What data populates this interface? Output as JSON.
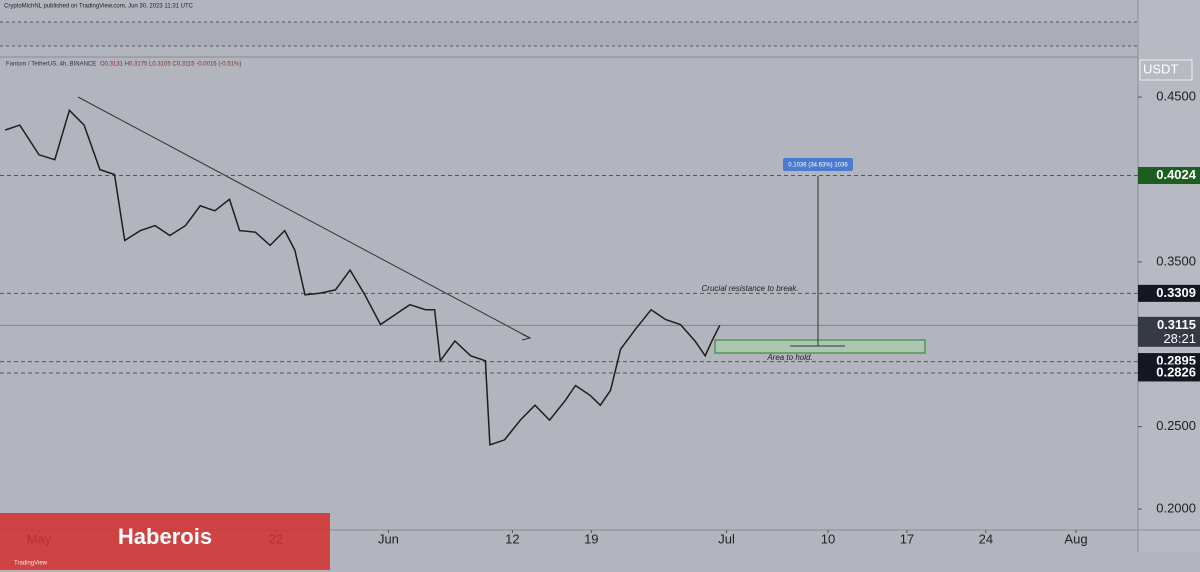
{
  "header": "CryptoMichNL published on TradingView.com, Jun 30, 2023 11:31 UTC",
  "chart_data": {
    "type": "line",
    "title": "Fantom / TetherUS, 4h, BINANCE",
    "ohlc": "O0.3131 H0.3175 L0.3105 C0.3115 -0.0016 (-0.51%)",
    "currency": "USDT",
    "color": "#1e1e1e",
    "x": [
      -3,
      -1.7,
      0,
      1.4,
      2.7,
      4,
      5.4,
      6.7,
      7.6,
      9,
      10.3,
      11.6,
      13,
      14.3,
      15.6,
      16.9,
      17.8,
      19.2,
      20.5,
      21.8,
      22.7,
      23.6,
      24.9,
      26.3,
      27.6,
      28.9,
      30.3,
      31.6,
      32.9,
      34.3,
      35.1,
      35.6,
      36.9,
      38.3,
      39.6,
      40,
      41.3,
      42.7,
      44,
      45.3,
      46.7,
      47.6,
      48.9,
      49.8,
      50.7,
      51.6,
      52.9,
      54.3,
      55.6,
      56.9,
      58.2,
      59.1,
      59.7,
      60.4
    ],
    "values": [
      0.43,
      0.433,
      0.415,
      0.412,
      0.442,
      0.433,
      0.406,
      0.403,
      0.363,
      0.369,
      0.372,
      0.366,
      0.372,
      0.384,
      0.381,
      0.388,
      0.369,
      0.368,
      0.36,
      0.369,
      0.357,
      0.33,
      0.331,
      0.333,
      0.345,
      0.33,
      0.312,
      0.318,
      0.324,
      0.321,
      0.321,
      0.29,
      0.302,
      0.293,
      0.29,
      0.239,
      0.242,
      0.254,
      0.263,
      0.254,
      0.266,
      0.275,
      0.269,
      0.263,
      0.272,
      0.297,
      0.309,
      0.321,
      0.315,
      0.312,
      0.302,
      0.293,
      0.302,
      0.3115
    ],
    "xlim": [
      -3.46,
      97.5
    ],
    "xticks": [
      {
        "value": 0,
        "label": "May"
      },
      {
        "value": 21,
        "label": "22"
      },
      {
        "value": 31,
        "label": "Jun"
      },
      {
        "value": 42,
        "label": "12"
      },
      {
        "value": 49,
        "label": "19"
      },
      {
        "value": 61,
        "label": "Jul"
      },
      {
        "value": 70,
        "label": "10"
      },
      {
        "value": 77,
        "label": "17"
      },
      {
        "value": 84,
        "label": "24"
      },
      {
        "value": 92,
        "label": "Aug"
      }
    ],
    "ylim": [
      0.1873,
      0.4725
    ],
    "yticks": [
      {
        "value": 0.45,
        "label": "0.4500"
      },
      {
        "value": 0.35,
        "label": "0.3500"
      },
      {
        "value": 0.25,
        "label": "0.2500"
      },
      {
        "value": 0.2,
        "label": "0.2000"
      }
    ],
    "levels": [
      {
        "value": 0.4024,
        "color": "#1b5e20"
      },
      {
        "value": 0.3309,
        "color": "#131722"
      },
      {
        "value": 0.3115,
        "color": "#363a45"
      },
      {
        "value": 0.2895,
        "color": "#131722"
      },
      {
        "value": 0.2826,
        "color": "#131722"
      }
    ],
    "countdown": "28:21",
    "annotations": {
      "resistance": "Crucial resistance to break.",
      "support": "Area to hold.",
      "measure": "0.1036 (34.63%) 1036"
    }
  },
  "watermark": "Haberois",
  "brand": "TradingView"
}
